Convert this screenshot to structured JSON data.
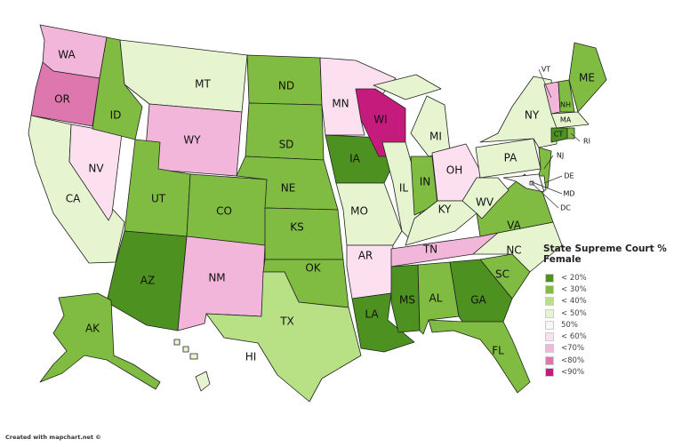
{
  "legend": {
    "title": "State Supreme Court % Female",
    "items": [
      {
        "key": "lt20",
        "label": "< 20%",
        "color": "#4d9221"
      },
      {
        "key": "lt30",
        "label": "< 30%",
        "color": "#7fbc41"
      },
      {
        "key": "lt40",
        "label": "< 40%",
        "color": "#b8e186"
      },
      {
        "key": "lt50",
        "label": "< 50%",
        "color": "#e6f5d0"
      },
      {
        "key": "eq50",
        "label": "50%",
        "color": "#f7f7f7"
      },
      {
        "key": "lt60",
        "label": "< 60%",
        "color": "#fde0ef"
      },
      {
        "key": "lt70",
        "label": "<70%",
        "color": "#f1b6da"
      },
      {
        "key": "lt80",
        "label": "<80%",
        "color": "#de77ae"
      },
      {
        "key": "lt90",
        "label": "<90%",
        "color": "#c51b7d"
      }
    ]
  },
  "states": [
    {
      "abbr": "WA",
      "cat": "lt70"
    },
    {
      "abbr": "OR",
      "cat": "lt80"
    },
    {
      "abbr": "CA",
      "cat": "lt50"
    },
    {
      "abbr": "NV",
      "cat": "lt60"
    },
    {
      "abbr": "ID",
      "cat": "lt30"
    },
    {
      "abbr": "MT",
      "cat": "lt50"
    },
    {
      "abbr": "WY",
      "cat": "lt70"
    },
    {
      "abbr": "UT",
      "cat": "lt30"
    },
    {
      "abbr": "CO",
      "cat": "lt30"
    },
    {
      "abbr": "AZ",
      "cat": "lt20"
    },
    {
      "abbr": "NM",
      "cat": "lt70"
    },
    {
      "abbr": "ND",
      "cat": "lt30"
    },
    {
      "abbr": "SD",
      "cat": "lt30"
    },
    {
      "abbr": "NE",
      "cat": "lt30"
    },
    {
      "abbr": "KS",
      "cat": "lt30"
    },
    {
      "abbr": "OK",
      "cat": "lt30"
    },
    {
      "abbr": "TX",
      "cat": "lt40"
    },
    {
      "abbr": "MN",
      "cat": "lt60"
    },
    {
      "abbr": "IA",
      "cat": "lt20"
    },
    {
      "abbr": "MO",
      "cat": "lt50"
    },
    {
      "abbr": "AR",
      "cat": "lt60"
    },
    {
      "abbr": "LA",
      "cat": "lt20"
    },
    {
      "abbr": "WI",
      "cat": "lt90"
    },
    {
      "abbr": "IL",
      "cat": "lt50"
    },
    {
      "abbr": "MI",
      "cat": "lt50"
    },
    {
      "abbr": "IN",
      "cat": "lt30"
    },
    {
      "abbr": "OH",
      "cat": "lt60"
    },
    {
      "abbr": "KY",
      "cat": "lt50"
    },
    {
      "abbr": "TN",
      "cat": "lt70"
    },
    {
      "abbr": "MS",
      "cat": "lt20"
    },
    {
      "abbr": "AL",
      "cat": "lt30"
    },
    {
      "abbr": "GA",
      "cat": "lt20"
    },
    {
      "abbr": "FL",
      "cat": "lt30"
    },
    {
      "abbr": "SC",
      "cat": "lt30"
    },
    {
      "abbr": "NC",
      "cat": "lt50"
    },
    {
      "abbr": "VA",
      "cat": "lt30"
    },
    {
      "abbr": "WV",
      "cat": "lt50"
    },
    {
      "abbr": "PA",
      "cat": "lt50"
    },
    {
      "abbr": "NY",
      "cat": "lt50"
    },
    {
      "abbr": "NJ",
      "cat": "lt30"
    },
    {
      "abbr": "DE",
      "cat": "eq50"
    },
    {
      "abbr": "MD",
      "cat": "eq50"
    },
    {
      "abbr": "DC",
      "cat": "eq50"
    },
    {
      "abbr": "VT",
      "cat": "lt70"
    },
    {
      "abbr": "NH",
      "cat": "lt30"
    },
    {
      "abbr": "ME",
      "cat": "lt30"
    },
    {
      "abbr": "MA",
      "cat": "lt50"
    },
    {
      "abbr": "CT",
      "cat": "lt20"
    },
    {
      "abbr": "RI",
      "cat": "lt30"
    },
    {
      "abbr": "AK",
      "cat": "lt30"
    },
    {
      "abbr": "HI",
      "cat": "lt50"
    }
  ],
  "credit": "Created with mapchart.net ©"
}
